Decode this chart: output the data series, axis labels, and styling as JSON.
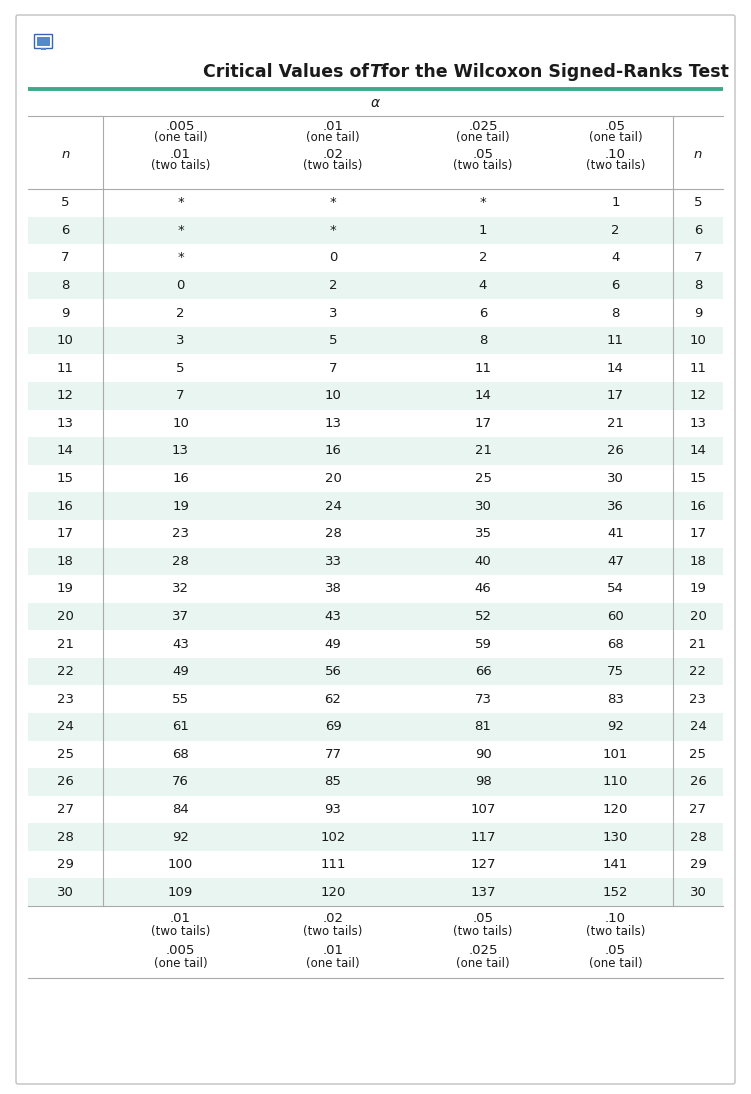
{
  "title_prefix": "Critical Values of ",
  "title_italic": "T",
  "title_suffix": " for the Wilcoxon Signed-Ranks Test",
  "alpha_label": "α",
  "n_values": [
    5,
    6,
    7,
    8,
    9,
    10,
    11,
    12,
    13,
    14,
    15,
    16,
    17,
    18,
    19,
    20,
    21,
    22,
    23,
    24,
    25,
    26,
    27,
    28,
    29,
    30
  ],
  "data": [
    [
      "*",
      "*",
      "*",
      "1"
    ],
    [
      "*",
      "*",
      "1",
      "2"
    ],
    [
      "*",
      "0",
      "2",
      "4"
    ],
    [
      "0",
      "2",
      "4",
      "6"
    ],
    [
      "2",
      "3",
      "6",
      "8"
    ],
    [
      "3",
      "5",
      "8",
      "11"
    ],
    [
      "5",
      "7",
      "11",
      "14"
    ],
    [
      "7",
      "10",
      "14",
      "17"
    ],
    [
      "10",
      "13",
      "17",
      "21"
    ],
    [
      "13",
      "16",
      "21",
      "26"
    ],
    [
      "16",
      "20",
      "25",
      "30"
    ],
    [
      "19",
      "24",
      "30",
      "36"
    ],
    [
      "23",
      "28",
      "35",
      "41"
    ],
    [
      "28",
      "33",
      "40",
      "47"
    ],
    [
      "32",
      "38",
      "46",
      "54"
    ],
    [
      "37",
      "43",
      "52",
      "60"
    ],
    [
      "43",
      "49",
      "59",
      "68"
    ],
    [
      "49",
      "56",
      "66",
      "75"
    ],
    [
      "55",
      "62",
      "73",
      "83"
    ],
    [
      "61",
      "69",
      "81",
      "92"
    ],
    [
      "68",
      "77",
      "90",
      "101"
    ],
    [
      "76",
      "85",
      "98",
      "110"
    ],
    [
      "84",
      "93",
      "107",
      "120"
    ],
    [
      "92",
      "102",
      "117",
      "130"
    ],
    [
      "100",
      "111",
      "127",
      "141"
    ],
    [
      "109",
      "120",
      "137",
      "152"
    ]
  ],
  "col_headers": [
    [
      ".005",
      "(one tail)",
      ".01",
      "(two tails)"
    ],
    [
      ".01",
      "(one tail)",
      ".02",
      "(two tails)"
    ],
    [
      ".025",
      "(one tail)",
      ".05",
      "(two tails)"
    ],
    [
      ".05",
      "(one tail)",
      ".10",
      "(two tails)"
    ]
  ],
  "footer_row1": [
    ".01",
    "(two tails)",
    ".02",
    "(two tails)",
    ".05",
    "(two tails)",
    ".10",
    "(two tails)"
  ],
  "footer_row2": [
    ".005",
    "(one tail)",
    ".01",
    "(one tail)",
    ".025",
    "(one tail)",
    ".05",
    "(one tail)"
  ],
  "even_row_color": "#e8f5f0",
  "odd_row_color": "#ffffff",
  "teal_line_color": "#3aaa8a",
  "border_color": "#c0c0c0",
  "sep_color": "#aaaaaa",
  "text_color": "#1a1a1a",
  "title_fontsize": 12.5,
  "cell_fontsize": 9.5,
  "header_val_fontsize": 9.5,
  "header_label_fontsize": 8.5,
  "n_label_fontsize": 9.5
}
